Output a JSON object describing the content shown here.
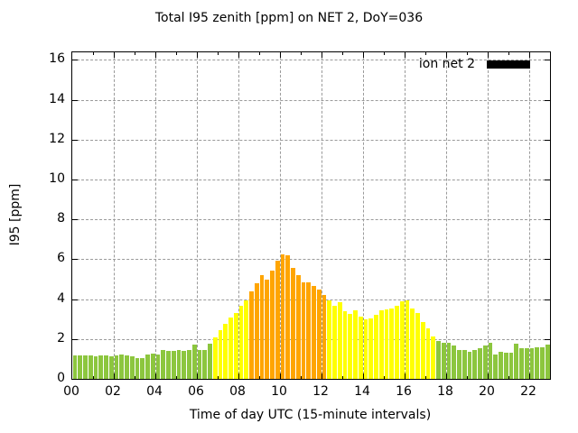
{
  "title": "Total I95 zenith [ppm] on NET 2, DoY=036",
  "legend": {
    "label": "ion net 2",
    "swatch_color": "#000000"
  },
  "chart_data": {
    "type": "bar",
    "title": "Total I95 zenith [ppm] on NET 2, DoY=036",
    "xlabel": "Time of day UTC (15-minute intervals)",
    "ylabel": "I95 [ppm]",
    "ylim": [
      0,
      16
    ],
    "ytick_step": 2,
    "ytick_labels": [
      "0",
      "2",
      "4",
      "6",
      "8",
      "10",
      "12",
      "14",
      "16"
    ],
    "x_hours_range": [
      0,
      23
    ],
    "xtick_hours": [
      0,
      2,
      4,
      6,
      8,
      10,
      12,
      14,
      16,
      18,
      20,
      22
    ],
    "xtick_labels": [
      "00",
      "02",
      "04",
      "06",
      "08",
      "10",
      "12",
      "14",
      "16",
      "18",
      "20",
      "22"
    ],
    "interval_minutes": 15,
    "grid": true,
    "legend_label": "ion net 2",
    "legend_position": "top-right",
    "bar_colors": {
      "g": "#8cc63e",
      "y": "#ffff00",
      "o": "#ffa500"
    },
    "times": [
      "00:00",
      "00:15",
      "00:30",
      "00:45",
      "01:00",
      "01:15",
      "01:30",
      "01:45",
      "02:00",
      "02:15",
      "02:30",
      "02:45",
      "03:00",
      "03:15",
      "03:30",
      "03:45",
      "04:00",
      "04:15",
      "04:30",
      "04:45",
      "05:00",
      "05:15",
      "05:30",
      "05:45",
      "06:00",
      "06:15",
      "06:30",
      "06:45",
      "07:00",
      "07:15",
      "07:30",
      "07:45",
      "08:00",
      "08:15",
      "08:30",
      "08:45",
      "09:00",
      "09:15",
      "09:30",
      "09:45",
      "10:00",
      "10:15",
      "10:30",
      "10:45",
      "11:00",
      "11:15",
      "11:30",
      "11:45",
      "12:00",
      "12:15",
      "12:30",
      "12:45",
      "13:00",
      "13:15",
      "13:30",
      "13:45",
      "14:00",
      "14:15",
      "14:30",
      "14:45",
      "15:00",
      "15:15",
      "15:30",
      "15:45",
      "16:00",
      "16:15",
      "16:30",
      "16:45",
      "17:00",
      "17:15",
      "17:30",
      "17:45",
      "18:00",
      "18:15",
      "18:30",
      "18:45",
      "19:00",
      "19:15",
      "19:30",
      "19:45",
      "20:00",
      "20:15",
      "20:30",
      "20:45",
      "21:00",
      "21:15",
      "21:30",
      "21:45",
      "22:00",
      "22:15",
      "22:30",
      "22:45"
    ],
    "values": [
      1.16,
      1.16,
      1.16,
      1.16,
      1.13,
      1.16,
      1.16,
      1.13,
      1.16,
      1.21,
      1.16,
      1.13,
      1.04,
      1.04,
      1.23,
      1.27,
      1.23,
      1.43,
      1.39,
      1.39,
      1.45,
      1.39,
      1.45,
      1.72,
      1.45,
      1.45,
      1.76,
      2.1,
      2.44,
      2.76,
      3.1,
      3.3,
      3.65,
      3.92,
      4.4,
      4.8,
      5.2,
      5.0,
      5.45,
      5.95,
      6.25,
      6.18,
      5.55,
      5.2,
      4.85,
      4.83,
      4.65,
      4.48,
      4.2,
      3.95,
      3.68,
      3.86,
      3.38,
      3.28,
      3.46,
      3.14,
      3.0,
      3.02,
      3.2,
      3.46,
      3.47,
      3.52,
      3.68,
      3.9,
      3.95,
      3.55,
      3.32,
      2.83,
      2.55,
      2.12,
      1.88,
      1.8,
      1.8,
      1.66,
      1.46,
      1.46,
      1.35,
      1.44,
      1.55,
      1.67,
      1.83,
      1.24,
      1.37,
      1.31,
      1.31,
      1.78,
      1.56,
      1.56,
      1.56,
      1.6,
      1.6,
      1.7
    ],
    "colors": [
      "g",
      "g",
      "g",
      "g",
      "g",
      "g",
      "g",
      "g",
      "g",
      "g",
      "g",
      "g",
      "g",
      "g",
      "g",
      "g",
      "g",
      "g",
      "g",
      "g",
      "g",
      "g",
      "g",
      "g",
      "g",
      "g",
      "g",
      "y",
      "y",
      "y",
      "y",
      "y",
      "y",
      "y",
      "o",
      "o",
      "o",
      "o",
      "o",
      "o",
      "o",
      "o",
      "o",
      "o",
      "o",
      "o",
      "o",
      "o",
      "o",
      "y",
      "y",
      "y",
      "y",
      "y",
      "y",
      "y",
      "y",
      "y",
      "y",
      "y",
      "y",
      "y",
      "y",
      "y",
      "y",
      "y",
      "y",
      "y",
      "y",
      "y",
      "g",
      "g",
      "g",
      "g",
      "g",
      "g",
      "g",
      "g",
      "g",
      "g",
      "g",
      "g",
      "g",
      "g",
      "g",
      "g",
      "g",
      "g",
      "g",
      "g",
      "g",
      "g"
    ]
  }
}
